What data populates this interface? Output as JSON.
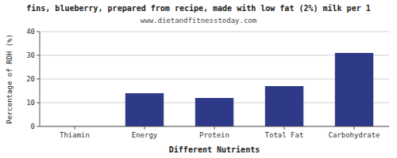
{
  "chart_data": {
    "type": "bar",
    "title": "fins, blueberry, prepared from recipe, made with low fat (2%) milk per 1",
    "subtitle": "www.dietandfitnesstoday.com",
    "categories": [
      "Thiamin",
      "Energy",
      "Protein",
      "Total Fat",
      "Carbohydrate"
    ],
    "values": [
      0,
      14,
      12,
      17,
      31
    ],
    "color": "#2E3A87",
    "xlabel": "Different Nutrients",
    "ylabel": "Percentage of RDH (%)",
    "ylim": [
      0,
      40
    ],
    "yticks": [
      0,
      10,
      20,
      30,
      40
    ],
    "grid": true
  }
}
